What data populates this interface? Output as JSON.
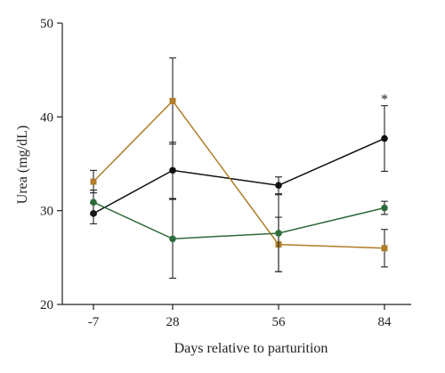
{
  "chart_data": {
    "type": "line",
    "title": "",
    "xlabel": "Days relative to parturition",
    "ylabel": "Urea (mg/dL)",
    "categories": [
      "-7",
      "28",
      "56",
      "84"
    ],
    "ylim": [
      20,
      50
    ],
    "yticks": [
      20,
      30,
      40,
      50
    ],
    "grid": false,
    "legend": "none",
    "series": [
      {
        "color": "#111111",
        "marker": "circle",
        "values": [
          29.7,
          34.3,
          32.7,
          37.7
        ],
        "error": [
          1.1,
          3.0,
          0.9,
          3.5
        ]
      },
      {
        "color": "#b07d2a",
        "marker": "square",
        "values": [
          33.1,
          41.7,
          26.4,
          26.0
        ],
        "error": [
          1.2,
          4.6,
          2.9,
          2.0
        ]
      },
      {
        "color": "#2e6b3a",
        "marker": "circle",
        "values": [
          30.9,
          27.0,
          27.6,
          30.3
        ],
        "error": [
          1.3,
          4.2,
          4.1,
          0.7
        ]
      }
    ],
    "annotations": [
      {
        "text": "*",
        "category": "84",
        "y": 42.0
      }
    ]
  }
}
